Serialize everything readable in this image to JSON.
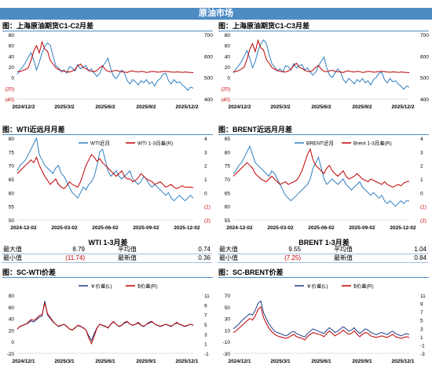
{
  "banner": "原油市场",
  "colors": {
    "blue": "#2f7fc1",
    "red": "#c00000",
    "navy": "#1f3c88",
    "banner": "#4e8bc4"
  },
  "panels": {
    "p1": {
      "title": "图：上海原油期货C1-C2月差"
    },
    "p2": {
      "title": "图：上海原油期货C1-C3月差"
    },
    "p3": {
      "title": "图：WTI近远月月差"
    },
    "p4": {
      "title": "图：BRENT近远月月差"
    },
    "p5": {
      "title": "图：SC-WTI价差"
    },
    "p6": {
      "title": "图：SC-BRENT价差"
    }
  },
  "stats_wti": {
    "title": "WTI 1-3月差",
    "rows": [
      {
        "l1": "最大值",
        "v1": "8.79",
        "l2": "平均值",
        "v2": "0.74"
      },
      {
        "l1": "最小值",
        "v1": "(11.74)",
        "l2": "最新值",
        "v2": "0.36"
      }
    ]
  },
  "stats_brent": {
    "title": "BRENT 1-3月差",
    "rows": [
      {
        "l1": "最大值",
        "v1": "9.55",
        "l2": "平均值",
        "v2": "1.04"
      },
      {
        "l1": "最小值",
        "v1": "(7.25)",
        "l2": "最新值",
        "v2": "0.84"
      }
    ]
  },
  "chart_data": [
    {
      "id": "p1",
      "type": "line",
      "x_ticks": [
        "2024/12/2",
        "2025/3/2",
        "2025/6/2",
        "2025/9/2",
        "2025/12/2"
      ],
      "y_left": {
        "ticks": [
          "80",
          "60",
          "40",
          "20",
          "0",
          "(20)",
          "(40)"
        ],
        "min": -40,
        "max": 80
      },
      "y_right": {
        "ticks": [
          "700",
          "600",
          "500",
          "400"
        ],
        "min": 350,
        "max": 700
      },
      "series": [
        {
          "axis": "left",
          "color": "#2f7fc1",
          "values": [
            6,
            14,
            20,
            28,
            38,
            46,
            32,
            14,
            28,
            46,
            58,
            64,
            60,
            40,
            22,
            18,
            10,
            14,
            8,
            20,
            18,
            12,
            24,
            16,
            20,
            22,
            12,
            16,
            8,
            2,
            8,
            20,
            28,
            36,
            16,
            2,
            -2,
            6,
            14,
            8,
            -6,
            -12,
            -4,
            -8,
            -14,
            -6,
            -10,
            -4,
            -12,
            -8,
            -16,
            -6,
            -2,
            6,
            8,
            -6,
            -12,
            -4,
            -10,
            -8,
            -14,
            -18,
            -24,
            -18,
            -20
          ]
        },
        {
          "axis": "right",
          "color": "#c00000",
          "values": [
            500,
            498,
            505,
            510,
            520,
            560,
            610,
            640,
            600,
            660,
            620,
            610,
            560,
            540,
            520,
            510,
            505,
            500,
            498,
            496,
            502,
            510,
            530,
            540,
            520,
            515,
            505,
            500,
            498,
            505,
            520,
            530,
            510,
            500,
            498,
            503,
            506,
            500,
            498,
            496,
            494,
            500,
            502,
            498,
            496,
            500,
            498,
            494,
            496,
            500,
            498,
            495,
            497,
            499,
            500,
            498,
            496,
            495,
            497,
            496,
            494,
            496,
            495,
            494,
            493
          ]
        }
      ]
    },
    {
      "id": "p2",
      "type": "line",
      "x_ticks": [
        "2024/12/2",
        "2025/3/2",
        "2025/6/2",
        "2025/9/2",
        "2025/12/2"
      ],
      "y_left": {
        "ticks": [
          "80",
          "60",
          "40",
          "20",
          "0",
          "(20)",
          "(40)"
        ],
        "min": -40,
        "max": 80
      },
      "y_right": {
        "ticks": [
          "700",
          "600",
          "500",
          "400"
        ],
        "min": 350,
        "max": 700
      },
      "series": [
        {
          "axis": "left",
          "color": "#2f7fc1",
          "values": [
            8,
            16,
            22,
            30,
            40,
            50,
            36,
            18,
            30,
            50,
            62,
            70,
            64,
            44,
            26,
            20,
            12,
            16,
            10,
            22,
            20,
            14,
            26,
            18,
            22,
            24,
            14,
            18,
            10,
            4,
            10,
            22,
            30,
            38,
            18,
            4,
            0,
            8,
            16,
            10,
            -4,
            -10,
            -2,
            -6,
            -12,
            -4,
            -8,
            -2,
            -10,
            -6,
            -14,
            -4,
            0,
            8,
            10,
            -4,
            -10,
            -2,
            -8,
            -6,
            -12,
            -16,
            -22,
            -16,
            -18
          ]
        },
        {
          "axis": "right",
          "color": "#c00000",
          "values": [
            500,
            498,
            505,
            512,
            524,
            566,
            620,
            650,
            608,
            668,
            628,
            616,
            566,
            544,
            522,
            512,
            506,
            500,
            498,
            496,
            502,
            512,
            532,
            544,
            522,
            516,
            506,
            500,
            498,
            506,
            522,
            532,
            512,
            500,
            498,
            503,
            506,
            500,
            498,
            496,
            494,
            500,
            502,
            498,
            496,
            500,
            498,
            494,
            496,
            500,
            498,
            495,
            497,
            499,
            500,
            498,
            496,
            495,
            497,
            496,
            494,
            496,
            495,
            494,
            493
          ]
        }
      ]
    },
    {
      "id": "p3",
      "type": "line",
      "x_ticks": [
        "2024-12-02",
        "2025-03-02",
        "2025-06-02",
        "2025-09-02",
        "2025-12-02"
      ],
      "y_left": {
        "ticks": [
          "80",
          "75",
          "70",
          "65",
          "60",
          "55",
          "50"
        ],
        "min": 50,
        "max": 80
      },
      "y_right": {
        "ticks": [
          "4",
          "3",
          "2",
          "1",
          "0",
          "(1)",
          "(2)"
        ],
        "min": -2,
        "max": 4
      },
      "legend": [
        {
          "label": "WTI近月",
          "color": "#2f7fc1"
        },
        {
          "label": "WTI 1-3月差(R)",
          "color": "#c00000"
        }
      ],
      "series": [
        {
          "axis": "left",
          "color": "#2f7fc1",
          "values": [
            68,
            70,
            71,
            72,
            74,
            76,
            78,
            80,
            74,
            72,
            70,
            69,
            68,
            67,
            69,
            70,
            67,
            66,
            64,
            62,
            60,
            59,
            58,
            60,
            62,
            61,
            63,
            64,
            66,
            70,
            75,
            76,
            72,
            68,
            66,
            67,
            68,
            66,
            65,
            66,
            67,
            68,
            65,
            64,
            63,
            64,
            66,
            65,
            63,
            62,
            63,
            62,
            61,
            60,
            59,
            60,
            58,
            57,
            58,
            59,
            58,
            57,
            58,
            59,
            58
          ]
        },
        {
          "axis": "right",
          "color": "#c00000",
          "values": [
            1.4,
            1.6,
            1.8,
            2.0,
            2.2,
            2.4,
            2.2,
            2.6,
            2.0,
            1.6,
            1.2,
            0.9,
            0.6,
            0.8,
            1.0,
            0.6,
            0.4,
            0.3,
            0.5,
            0.8,
            0.6,
            0.5,
            0.4,
            0.8,
            1.4,
            2.0,
            2.4,
            2.8,
            2.6,
            2.3,
            2.5,
            2.2,
            2.0,
            1.8,
            1.6,
            1.4,
            1.2,
            1.4,
            1.6,
            1.2,
            1.0,
            1.0,
            0.8,
            0.9,
            1.1,
            1.4,
            1.2,
            1.0,
            0.9,
            0.8,
            0.6,
            0.7,
            0.8,
            0.6,
            0.4,
            0.5,
            0.6,
            0.4,
            0.3,
            0.4,
            0.5,
            0.4,
            0.4,
            0.4,
            0.36
          ]
        }
      ]
    },
    {
      "id": "p4",
      "type": "line",
      "x_ticks": [
        "2024-12-02",
        "2025-03-02",
        "2025-06-02",
        "2025-09-02",
        "2025-12-02"
      ],
      "y_left": {
        "ticks": [
          "85",
          "80",
          "75",
          "70",
          "65",
          "60",
          "55"
        ],
        "min": 55,
        "max": 85
      },
      "y_right": {
        "ticks": [
          "4",
          "3",
          "2",
          "1",
          "0",
          "(1)",
          "(2)"
        ],
        "min": -2,
        "max": 4
      },
      "legend": [
        {
          "label": "BRENT近月",
          "color": "#2f7fc1"
        },
        {
          "label": "Brent 1-3月差(R)",
          "color": "#c00000"
        }
      ],
      "series": [
        {
          "axis": "left",
          "color": "#2f7fc1",
          "values": [
            72,
            73,
            75,
            76,
            78,
            80,
            82,
            79,
            76,
            75,
            74,
            73,
            72,
            71,
            73,
            72,
            70,
            68,
            66,
            64,
            63,
            62,
            63,
            64,
            65,
            66,
            67,
            68,
            70,
            74,
            76,
            78,
            74,
            70,
            68,
            69,
            70,
            69,
            68,
            69,
            70,
            68,
            67,
            66,
            67,
            68,
            69,
            67,
            66,
            65,
            64,
            65,
            64,
            63,
            64,
            62,
            61,
            62,
            61,
            60,
            61,
            62,
            61,
            62,
            62
          ]
        },
        {
          "axis": "right",
          "color": "#c00000",
          "values": [
            1.2,
            1.4,
            1.6,
            1.8,
            2.0,
            2.2,
            2.0,
            1.8,
            1.4,
            1.2,
            1.0,
            0.9,
            0.8,
            1.0,
            1.2,
            1.0,
            0.8,
            0.6,
            0.7,
            0.8,
            0.6,
            0.7,
            0.8,
            0.9,
            1.2,
            1.6,
            2.2,
            2.8,
            3.2,
            2.4,
            2.0,
            1.8,
            1.6,
            1.4,
            1.8,
            2.0,
            1.6,
            1.4,
            1.2,
            1.4,
            1.6,
            1.2,
            1.0,
            1.1,
            1.2,
            1.4,
            1.2,
            1.0,
            0.9,
            0.8,
            1.0,
            0.9,
            0.8,
            0.7,
            0.6,
            0.8,
            0.6,
            0.5,
            0.4,
            0.5,
            0.6,
            0.5,
            0.7,
            0.8,
            0.84
          ]
        }
      ]
    },
    {
      "id": "p5",
      "type": "line",
      "x_ticks": [
        "2024/12/1",
        "2025/3/1",
        "2025/6/1",
        "2025/9/1",
        "2025/12/1"
      ],
      "y_left": {
        "ticks": [
          "80",
          "60",
          "40",
          "20",
          "0",
          "-20"
        ],
        "min": -20,
        "max": 80
      },
      "y_right": {
        "ticks": [
          "11",
          "9",
          "7",
          "5",
          "3",
          "1",
          "-1"
        ],
        "min": -1,
        "max": 11
      },
      "legend": [
        {
          "label": "￥价差(L)",
          "color": "#1f3c88"
        },
        {
          "label": "$价差(R)",
          "color": "#c00000"
        }
      ],
      "series": [
        {
          "axis": "left",
          "color": "#1f3c88",
          "values": [
            22,
            26,
            28,
            30,
            32,
            36,
            34,
            38,
            42,
            44,
            70,
            46,
            40,
            34,
            30,
            26,
            28,
            30,
            26,
            22,
            20,
            24,
            28,
            26,
            24,
            20,
            10,
            2,
            14,
            24,
            30,
            28,
            26,
            24,
            30,
            34,
            30,
            26,
            28,
            32,
            34,
            30,
            28,
            30,
            32,
            28,
            26,
            30,
            32,
            34,
            30,
            28,
            26,
            28,
            30,
            28,
            26,
            30,
            32,
            30,
            28,
            26,
            28,
            30,
            28
          ]
        },
        {
          "axis": "right",
          "color": "#c00000",
          "values": [
            4.0,
            4.6,
            4.8,
            5.0,
            5.4,
            6.0,
            5.8,
            6.2,
            6.8,
            7.0,
            9.4,
            7.2,
            6.4,
            5.6,
            5.0,
            4.6,
            4.8,
            5.0,
            4.6,
            4.0,
            3.8,
            4.2,
            4.8,
            4.6,
            4.2,
            3.8,
            2.2,
            1.0,
            2.6,
            4.2,
            5.0,
            4.8,
            4.6,
            4.2,
            5.0,
            5.6,
            5.0,
            4.6,
            4.8,
            5.4,
            5.6,
            5.0,
            4.8,
            5.0,
            5.4,
            4.8,
            4.6,
            5.0,
            5.4,
            5.6,
            5.0,
            4.8,
            4.6,
            4.8,
            5.0,
            4.8,
            4.6,
            5.0,
            5.4,
            5.0,
            4.8,
            4.6,
            4.8,
            5.0,
            4.8
          ]
        }
      ]
    },
    {
      "id": "p6",
      "type": "line",
      "x_ticks": [
        "2024/12/1",
        "2025/3/1",
        "2025/6/1",
        "2025/9/1",
        "2025/12/1"
      ],
      "y_left": {
        "ticks": [
          "70",
          "50",
          "30",
          "10",
          "-10",
          "-30"
        ],
        "min": -30,
        "max": 70
      },
      "y_right": {
        "ticks": [
          "11",
          "9",
          "7",
          "5",
          "3",
          "1",
          "-1",
          "-3"
        ],
        "min": -3,
        "max": 11
      },
      "legend": [
        {
          "label": "￥价差(L)",
          "color": "#1f3c88"
        },
        {
          "label": "$价差(R)",
          "color": "#c00000"
        }
      ],
      "series": [
        {
          "axis": "left",
          "color": "#1f3c88",
          "values": [
            12,
            16,
            20,
            26,
            30,
            34,
            38,
            36,
            44,
            56,
            60,
            40,
            30,
            20,
            14,
            8,
            6,
            4,
            2,
            0,
            2,
            6,
            8,
            4,
            2,
            0,
            -2,
            4,
            8,
            12,
            10,
            8,
            6,
            4,
            10,
            14,
            10,
            6,
            8,
            12,
            16,
            12,
            8,
            10,
            14,
            8,
            4,
            8,
            12,
            10,
            6,
            4,
            2,
            4,
            6,
            4,
            2,
            6,
            8,
            4,
            2,
            0,
            2,
            4,
            2
          ]
        },
        {
          "axis": "right",
          "color": "#c00000",
          "values": [
            2.0,
            2.4,
            3.0,
            3.6,
            4.2,
            4.8,
            5.4,
            5.0,
            6.0,
            7.6,
            8.2,
            5.6,
            4.2,
            3.0,
            2.2,
            1.6,
            1.2,
            1.0,
            0.8,
            0.6,
            0.8,
            1.2,
            1.6,
            1.0,
            0.8,
            0.6,
            0.2,
            1.0,
            1.6,
            2.0,
            1.8,
            1.6,
            1.4,
            1.0,
            1.8,
            2.4,
            1.8,
            1.2,
            1.6,
            2.0,
            2.6,
            2.0,
            1.6,
            1.8,
            2.4,
            1.6,
            1.0,
            1.6,
            2.0,
            1.8,
            1.2,
            1.0,
            0.8,
            1.0,
            1.2,
            1.0,
            0.8,
            1.2,
            1.6,
            1.0,
            0.8,
            0.6,
            0.8,
            1.0,
            0.8
          ]
        }
      ]
    }
  ]
}
